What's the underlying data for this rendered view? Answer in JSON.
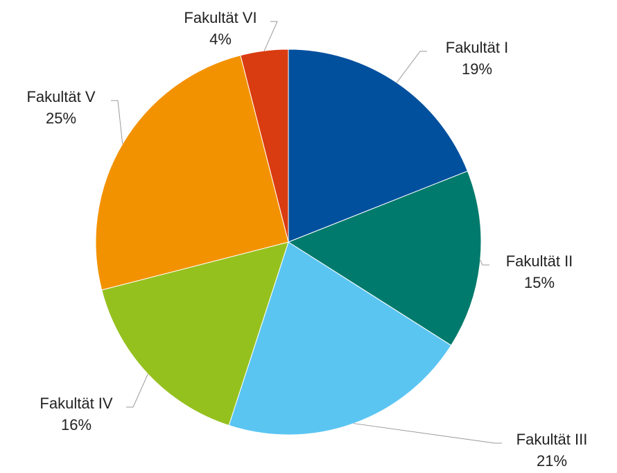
{
  "chart_data": {
    "type": "pie",
    "categories": [
      "Fakultät I",
      "Fakultät II",
      "Fakultät III",
      "Fakultät IV",
      "Fakultät V",
      "Fakultät VI"
    ],
    "values": [
      19,
      15,
      21,
      16,
      25,
      4
    ],
    "value_labels": [
      "19%",
      "15%",
      "21%",
      "16%",
      "25%",
      "4%"
    ],
    "colors": [
      "#00509e",
      "#007a6c",
      "#5bc5f2",
      "#95c11f",
      "#f39200",
      "#d93c10"
    ]
  }
}
